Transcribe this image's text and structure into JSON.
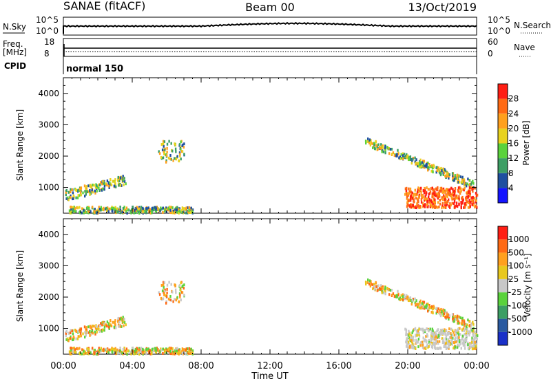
{
  "header": {
    "station": "SANAE (fitACF)",
    "beam": "Beam 00",
    "date": "13/Oct/2019"
  },
  "strips": {
    "nsky_label": "N.Sky",
    "nsky_ticks": [
      "10^5",
      "10^0"
    ],
    "nsearch_label": "N.Search",
    "nsearch_ticks": [
      "10^5",
      "10^0"
    ],
    "freq_label": "Freq.",
    "freq_unit": "[MHz]",
    "freq_ticks": [
      "18",
      "8"
    ],
    "nave_label": "Nave",
    "nave_ticks": [
      "60",
      "0"
    ],
    "cpid_label": "CPID",
    "cpid_value": "normal 150"
  },
  "x_axis": {
    "label": "Time UT",
    "tick_labels": [
      "00:00",
      "04:00",
      "08:00",
      "12:00",
      "16:00",
      "20:00",
      "00:00"
    ],
    "range_hours": [
      0,
      24
    ]
  },
  "panels": {
    "power": {
      "ylabel": "Slant Range [km]",
      "ytick_labels": [
        "1000",
        "2000",
        "3000",
        "4000"
      ],
      "colorbar_label": "Power [dB]",
      "colorbar_ticks": [
        "4",
        "8",
        "12",
        "16",
        "20",
        "24",
        "28"
      ],
      "colorbar_colors": [
        "#1414ff",
        "#1e4fa0",
        "#3c9e64",
        "#5ad23c",
        "#e8d21e",
        "#ffa01e",
        "#ff6a14",
        "#ff1e14"
      ]
    },
    "velocity": {
      "ylabel": "Slant Range [km]",
      "ytick_labels": [
        "1000",
        "2000",
        "3000",
        "4000"
      ],
      "colorbar_label": "Velocity [m s⁻¹]",
      "colorbar_ticks": [
        "1000",
        "500",
        "100",
        "25",
        "-25",
        "-100",
        "-500",
        "-1000"
      ],
      "colorbar_colors": [
        "#1a30c8",
        "#2a5aa0",
        "#3c9e64",
        "#5ad23c",
        "#c8c8c8",
        "#e8c81e",
        "#ffa01e",
        "#ff6a14",
        "#ff1e14"
      ]
    }
  },
  "chart_data": {
    "type": "heatmap",
    "x_unit": "hours UT",
    "y_unit": "km",
    "xlim": [
      0,
      24
    ],
    "ylim": [
      180,
      4500
    ],
    "echo_regions": [
      {
        "x": [
          0.1,
          3.6
        ],
        "y": [
          550,
          1400
        ]
      },
      {
        "x": [
          0.3,
          7.5
        ],
        "y": [
          180,
          380
        ]
      },
      {
        "x": [
          5.5,
          7.0
        ],
        "y": [
          1800,
          2500
        ]
      },
      {
        "x": [
          17.5,
          23.8
        ],
        "y": [
          1100,
          2600
        ]
      },
      {
        "x": [
          19.8,
          24.0
        ],
        "y": [
          350,
          1000
        ]
      }
    ]
  }
}
